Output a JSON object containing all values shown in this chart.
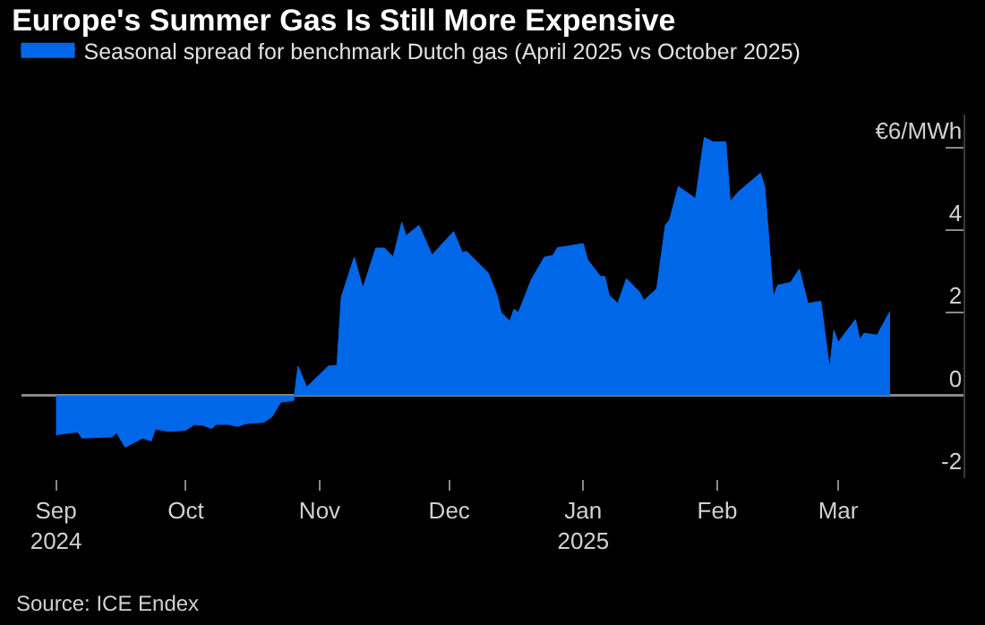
{
  "chart_data": {
    "type": "area",
    "title": "Europe's Summer Gas Is Still More Expensive",
    "legend": "top left",
    "x": [
      "2024-09-01",
      "2024-09-02",
      "2024-09-06",
      "2024-09-07",
      "2024-09-14",
      "2024-09-15",
      "2024-09-17",
      "2024-09-21",
      "2024-09-23",
      "2024-09-24",
      "2024-09-27",
      "2024-10-01",
      "2024-10-03",
      "2024-10-05",
      "2024-10-07",
      "2024-10-08",
      "2024-10-11",
      "2024-10-13",
      "2024-10-15",
      "2024-10-19",
      "2024-10-21",
      "2024-10-23",
      "2024-10-26",
      "2024-10-27",
      "2024-10-29",
      "2024-11-03",
      "2024-11-05",
      "2024-11-06",
      "2024-11-09",
      "2024-11-11",
      "2024-11-14",
      "2024-11-16",
      "2024-11-18",
      "2024-11-20",
      "2024-11-21",
      "2024-11-24",
      "2024-11-27",
      "2024-12-02",
      "2024-12-04",
      "2024-12-05",
      "2024-12-10",
      "2024-12-12",
      "2024-12-13",
      "2024-12-15",
      "2024-12-16",
      "2024-12-17",
      "2024-12-20",
      "2024-12-23",
      "2024-12-25",
      "2024-12-26",
      "2024-12-28",
      "2025-01-01",
      "2025-01-02",
      "2025-01-05",
      "2025-01-06",
      "2025-01-07",
      "2025-01-09",
      "2025-01-11",
      "2025-01-14",
      "2025-01-15",
      "2025-01-18",
      "2025-01-20",
      "2025-01-21",
      "2025-01-23",
      "2025-01-27",
      "2025-01-29",
      "2025-01-31",
      "2025-02-03",
      "2025-02-04",
      "2025-02-06",
      "2025-02-11",
      "2025-02-12",
      "2025-02-14",
      "2025-02-15",
      "2025-02-18",
      "2025-02-20",
      "2025-02-22",
      "2025-02-25",
      "2025-02-27",
      "2025-02-28",
      "2025-03-01",
      "2025-03-02",
      "2025-03-05",
      "2025-03-06",
      "2025-03-07",
      "2025-03-10",
      "2025-03-13"
    ],
    "series": [
      {
        "name": "Seasonal spread for benchmark Dutch gas (April 2025 vs October 2025)",
        "color": "#0068e8",
        "values": [
          -0.96,
          -0.93,
          -0.88,
          -1.03,
          -1.0,
          -0.9,
          -1.25,
          -1.03,
          -1.1,
          -0.81,
          -0.87,
          -0.84,
          -0.7,
          -0.72,
          -0.8,
          -0.7,
          -0.7,
          -0.75,
          -0.68,
          -0.65,
          -0.51,
          -0.16,
          -0.12,
          0.71,
          0.2,
          0.71,
          0.73,
          2.38,
          3.35,
          2.6,
          3.57,
          3.57,
          3.35,
          4.19,
          3.87,
          4.12,
          3.4,
          3.97,
          3.46,
          3.49,
          2.97,
          2.45,
          2.01,
          1.8,
          2.09,
          2.01,
          2.81,
          3.35,
          3.39,
          3.58,
          3.61,
          3.68,
          3.29,
          2.88,
          2.88,
          2.42,
          2.23,
          2.83,
          2.51,
          2.3,
          2.58,
          4.12,
          4.26,
          5.06,
          4.77,
          6.25,
          6.14,
          6.14,
          4.7,
          4.94,
          5.38,
          5.06,
          2.38,
          2.67,
          2.74,
          3.06,
          2.23,
          2.28,
          0.64,
          1.58,
          1.29,
          1.43,
          1.84,
          1.36,
          1.51,
          1.46,
          2.04
        ]
      }
    ],
    "xlim": [
      "2024-08-24",
      "2025-03-30"
    ],
    "xticks": [
      {
        "value": "2024-09-01",
        "label": "Sep\n2024"
      },
      {
        "value": "2024-10-01",
        "label": "Oct"
      },
      {
        "value": "2024-11-01",
        "label": "Nov"
      },
      {
        "value": "2024-12-01",
        "label": "Dec"
      },
      {
        "value": "2025-01-01",
        "label": "Jan\n2025"
      },
      {
        "value": "2025-02-01",
        "label": "Feb"
      },
      {
        "value": "2025-03-01",
        "label": "Mar"
      }
    ],
    "ylim": [
      -2,
      6.8
    ],
    "yticks": [
      -2,
      0,
      2,
      4,
      {
        "value": 6,
        "label": "€6/MWh"
      }
    ],
    "annotations": [
      "Source: ICE Endex"
    ]
  }
}
